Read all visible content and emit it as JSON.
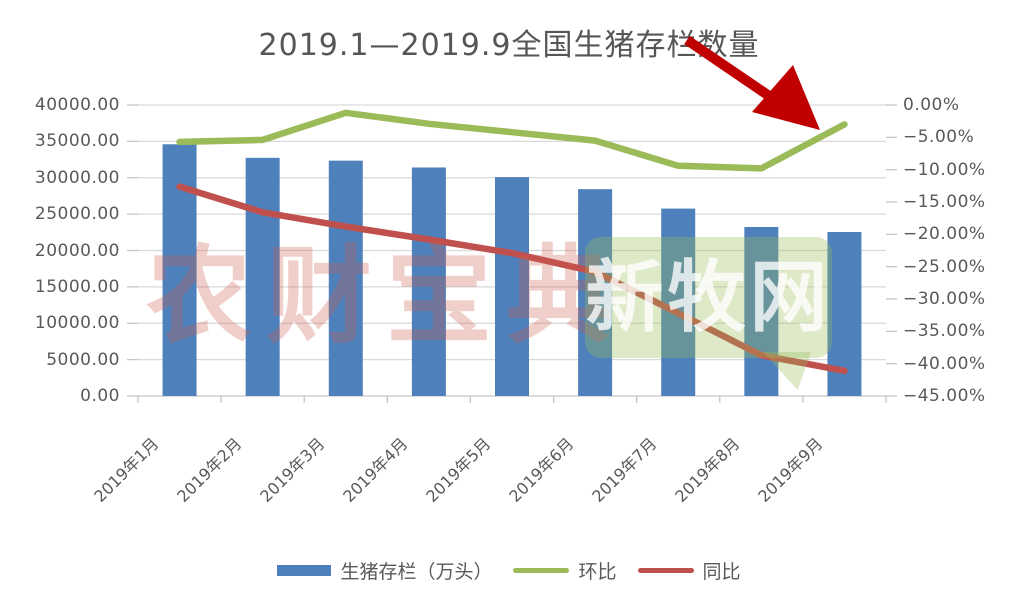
{
  "title": "2019.1—2019.9全国生猪存栏数量",
  "watermarks": {
    "left": "农财宝典",
    "right": "新牧网"
  },
  "legend": [
    {
      "label": "生猪存栏（万头）",
      "marker": "bar",
      "color": "#4E80BC"
    },
    {
      "label": "环比",
      "marker": "line",
      "color": "#9BBB59"
    },
    {
      "label": "同比",
      "marker": "line",
      "color": "#C0504D"
    }
  ],
  "colors": {
    "bar": "#4E80BC",
    "mom_line": "#9BBB59",
    "yoy_line": "#C0504D",
    "arrow": "#C00000",
    "gridline": "#D9D9D9",
    "axis_line": "#C6C6C6",
    "axis_text": "#595959",
    "watermark_pink": "rgba(206,92,79,0.30)",
    "watermark_green": "rgba(155,187,89,0.33)",
    "watermark_green_text": "rgba(255,255,255,0.78)"
  },
  "chart_data": {
    "type": "bar",
    "title": "2019.1—2019.9全国生猪存栏数量",
    "categories": [
      "2019年1月",
      "2019年2月",
      "2019年3月",
      "2019年4月",
      "2019年5月",
      "2019年6月",
      "2019年7月",
      "2019年8月",
      "2019年9月"
    ],
    "series": [
      {
        "name": "生猪存栏（万头）",
        "type": "bar",
        "axis": "left",
        "color": "#4E80BC",
        "values": [
          34600,
          32740,
          32350,
          31410,
          30090,
          28430,
          25760,
          23230,
          22540
        ]
      },
      {
        "name": "环比",
        "type": "line",
        "axis": "right",
        "color": "#9BBB59",
        "unit": "%",
        "values": [
          -5.7,
          -5.4,
          -1.2,
          -2.9,
          -4.2,
          -5.5,
          -9.4,
          -9.8,
          -3.0
        ]
      },
      {
        "name": "同比",
        "type": "line",
        "axis": "right",
        "color": "#C0504D",
        "unit": "%",
        "values": [
          -12.62,
          -16.6,
          -18.8,
          -20.8,
          -22.9,
          -25.8,
          -32.2,
          -38.7,
          -41.1
        ]
      }
    ],
    "left_axis": {
      "min": 0,
      "max": 40000,
      "step": 5000,
      "ticks": [
        "40000.00",
        "35000.00",
        "30000.00",
        "25000.00",
        "20000.00",
        "15000.00",
        "10000.00",
        "5000.00",
        "0.00"
      ]
    },
    "right_axis": {
      "min": -45,
      "max": 0,
      "step": 5,
      "ticks": [
        "0.00%",
        "−5.00%",
        "−10.00%",
        "−15.00%",
        "−20.00%",
        "−25.00%",
        "−30.00%",
        "−35.00%",
        "−40.00%",
        "−45.00%"
      ]
    },
    "legend_position": "bottom",
    "grid": "horizontal",
    "annotations": [
      {
        "type": "arrow",
        "color": "#C00000",
        "target": "2019年9月 环比"
      }
    ]
  }
}
